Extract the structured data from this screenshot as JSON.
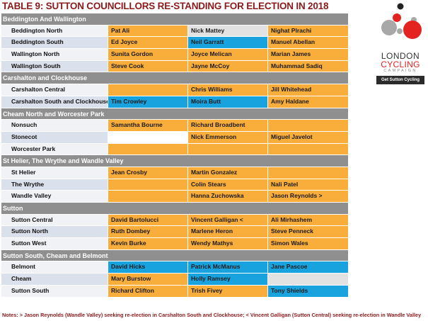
{
  "title": "TABLE 9: SUTTON COUNCILLORS RE-STANDING FOR ELECTION IN 2018",
  "colors": {
    "o": "#f9ad3b",
    "b": "#18a3df",
    "g": "#e2e2e2",
    "w": "#ffffff",
    "header": "#8f8f8f",
    "title": "#8b1a1a"
  },
  "sections": [
    {
      "name": "Beddington And Wallington",
      "rows": [
        {
          "ward": "Beddington North",
          "cells": [
            [
              "Pat Ali",
              "o"
            ],
            [
              "Nick Mattey",
              "g"
            ],
            [
              "Nighat Plrachi",
              "o"
            ]
          ]
        },
        {
          "ward": "Beddington South",
          "cells": [
            [
              "Ed Joyce",
              "o"
            ],
            [
              "Neil Garratt",
              "b"
            ],
            [
              "Manuel Abellan",
              "o"
            ]
          ]
        },
        {
          "ward": "Wallington North",
          "cells": [
            [
              "Sunita Gordon",
              "o"
            ],
            [
              "Joyce Melican",
              "o"
            ],
            [
              "Marian James",
              "o"
            ]
          ]
        },
        {
          "ward": "Wallington South",
          "cells": [
            [
              "Steve Cook",
              "o"
            ],
            [
              "Jayne McCoy",
              "o"
            ],
            [
              "Muhammad Sadiq",
              "o"
            ]
          ]
        }
      ]
    },
    {
      "name": "Carshalton and Clockhouse",
      "rows": [
        {
          "ward": "Carshalton Central",
          "cells": [
            [
              "",
              "o"
            ],
            [
              "Chris Williams",
              "o"
            ],
            [
              "Jill Whitehead",
              "o"
            ]
          ]
        },
        {
          "ward": "Carshalton South and Clockhouse",
          "cells": [
            [
              "Tim Crowley",
              "b"
            ],
            [
              "Moira Butt",
              "b"
            ],
            [
              "Amy Haldane",
              "o"
            ]
          ]
        }
      ]
    },
    {
      "name": "Cheam North and Worcester Park",
      "rows": [
        {
          "ward": "Nonsuch",
          "cells": [
            [
              "Samantha Bourne",
              "o"
            ],
            [
              "Richard Broadbent",
              "o"
            ],
            [
              "",
              "o"
            ]
          ]
        },
        {
          "ward": "Stonecot",
          "cells": [
            [
              "",
              "w"
            ],
            [
              "Nick Emmerson",
              "o"
            ],
            [
              "Miguel Javelot",
              "o"
            ]
          ]
        },
        {
          "ward": "Worcester Park",
          "cells": [
            [
              "",
              "o"
            ],
            [
              "",
              "o"
            ],
            [
              "",
              "o"
            ]
          ]
        }
      ]
    },
    {
      "name": "St Helier, The Wrythe and Wandle Valley",
      "rows": [
        {
          "ward": "St Helier",
          "cells": [
            [
              "Jean Crosby",
              "o"
            ],
            [
              "Martin Gonzalez",
              "o"
            ],
            [
              "",
              "o"
            ]
          ]
        },
        {
          "ward": "The Wrythe",
          "cells": [
            [
              "",
              "o"
            ],
            [
              "Colin Stears",
              "o"
            ],
            [
              "Nali Patel",
              "o"
            ]
          ]
        },
        {
          "ward": "Wandle Valley",
          "cells": [
            [
              "",
              "o"
            ],
            [
              "Hanna Zuchowska",
              "o"
            ],
            [
              "Jason Reynolds >",
              "o"
            ]
          ]
        }
      ]
    },
    {
      "name": "Sutton",
      "rows": [
        {
          "ward": "Sutton Central",
          "cells": [
            [
              "David Bartolucci",
              "o"
            ],
            [
              "Vincent Galligan <",
              "o"
            ],
            [
              "Ali Mirhashem",
              "o"
            ]
          ]
        },
        {
          "ward": "Sutton North",
          "cells": [
            [
              "Ruth Dombey",
              "o"
            ],
            [
              "Marlene Heron",
              "o"
            ],
            [
              "Steve Penneck",
              "o"
            ]
          ]
        },
        {
          "ward": "Sutton West",
          "cells": [
            [
              "Kevin Burke",
              "o"
            ],
            [
              "Wendy Mathys",
              "o"
            ],
            [
              "Simon Wales",
              "o"
            ]
          ]
        }
      ]
    },
    {
      "name": "Sutton South, Cheam and Belmont",
      "rows": [
        {
          "ward": "Belmont",
          "cells": [
            [
              "David Hicks",
              "b"
            ],
            [
              "Patrick McManus",
              "b"
            ],
            [
              "Jane Pascoe",
              "b"
            ]
          ]
        },
        {
          "ward": "Cheam",
          "cells": [
            [
              "Mary Burstow",
              "o"
            ],
            [
              "Holly Ramsey",
              "b"
            ],
            [
              "",
              "g"
            ]
          ]
        },
        {
          "ward": "Sutton South",
          "cells": [
            [
              "Richard Clifton",
              "o"
            ],
            [
              "Trish Fivey",
              "o"
            ],
            [
              "Tony Shields",
              "b"
            ]
          ]
        }
      ]
    }
  ],
  "logo": {
    "line1": "LONDON",
    "line2": "CYCLING",
    "line3": "CAMPAIGN",
    "tagline": "Get Sutton Cycling"
  },
  "notes": "Notes: > Jason Reynolds (Wandle Valley) seeking re-election in Carshalton South and Clockhouse; < Vincent Galligan (Sutton Central) seeking re-election in Wandle Valley"
}
